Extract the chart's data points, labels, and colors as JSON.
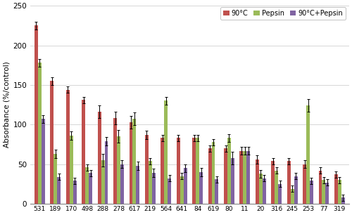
{
  "categories": [
    "531",
    "189",
    "170",
    "498",
    "288",
    "278",
    "617",
    "219",
    "564",
    "641",
    "84",
    "619",
    "80",
    "11",
    "20",
    "316",
    "245",
    "253",
    "77",
    "319"
  ],
  "series": {
    "90C": [
      225,
      155,
      144,
      131,
      116,
      108,
      103,
      87,
      83,
      83,
      83,
      70,
      70,
      67,
      56,
      54,
      54,
      50,
      42,
      37
    ],
    "Pepsin": [
      178,
      63,
      86,
      46,
      55,
      85,
      107,
      54,
      130,
      35,
      83,
      78,
      83,
      67,
      38,
      42,
      19,
      124,
      30,
      30
    ],
    "90C_Pepsin": [
      107,
      34,
      29,
      39,
      79,
      50,
      48,
      39,
      32,
      45,
      40,
      31,
      58,
      67,
      32,
      25,
      35,
      29,
      27,
      8
    ]
  },
  "errors": {
    "90C": [
      5,
      5,
      4,
      4,
      8,
      8,
      8,
      5,
      4,
      4,
      4,
      4,
      4,
      5,
      5,
      4,
      4,
      5,
      4,
      4
    ],
    "Pepsin": [
      5,
      5,
      5,
      4,
      8,
      8,
      8,
      4,
      5,
      4,
      4,
      4,
      5,
      5,
      5,
      4,
      4,
      8,
      4,
      4
    ],
    "90C_Pepsin": [
      5,
      4,
      4,
      4,
      5,
      5,
      5,
      5,
      4,
      5,
      5,
      4,
      8,
      5,
      4,
      4,
      4,
      4,
      4,
      4
    ]
  },
  "colors": {
    "90C": "#C0504D",
    "Pepsin": "#9BBB59",
    "90C_Pepsin": "#8064A2"
  },
  "legend_labels": [
    "90°C",
    "Pepsin",
    "90°C+Pepsin"
  ],
  "ylabel": "Absorbance (%/control)",
  "ylim": [
    0,
    250
  ],
  "yticks": [
    0,
    50,
    100,
    150,
    200,
    250
  ],
  "background_color": "#FFFFFF",
  "grid_color": "#D0D0D0"
}
